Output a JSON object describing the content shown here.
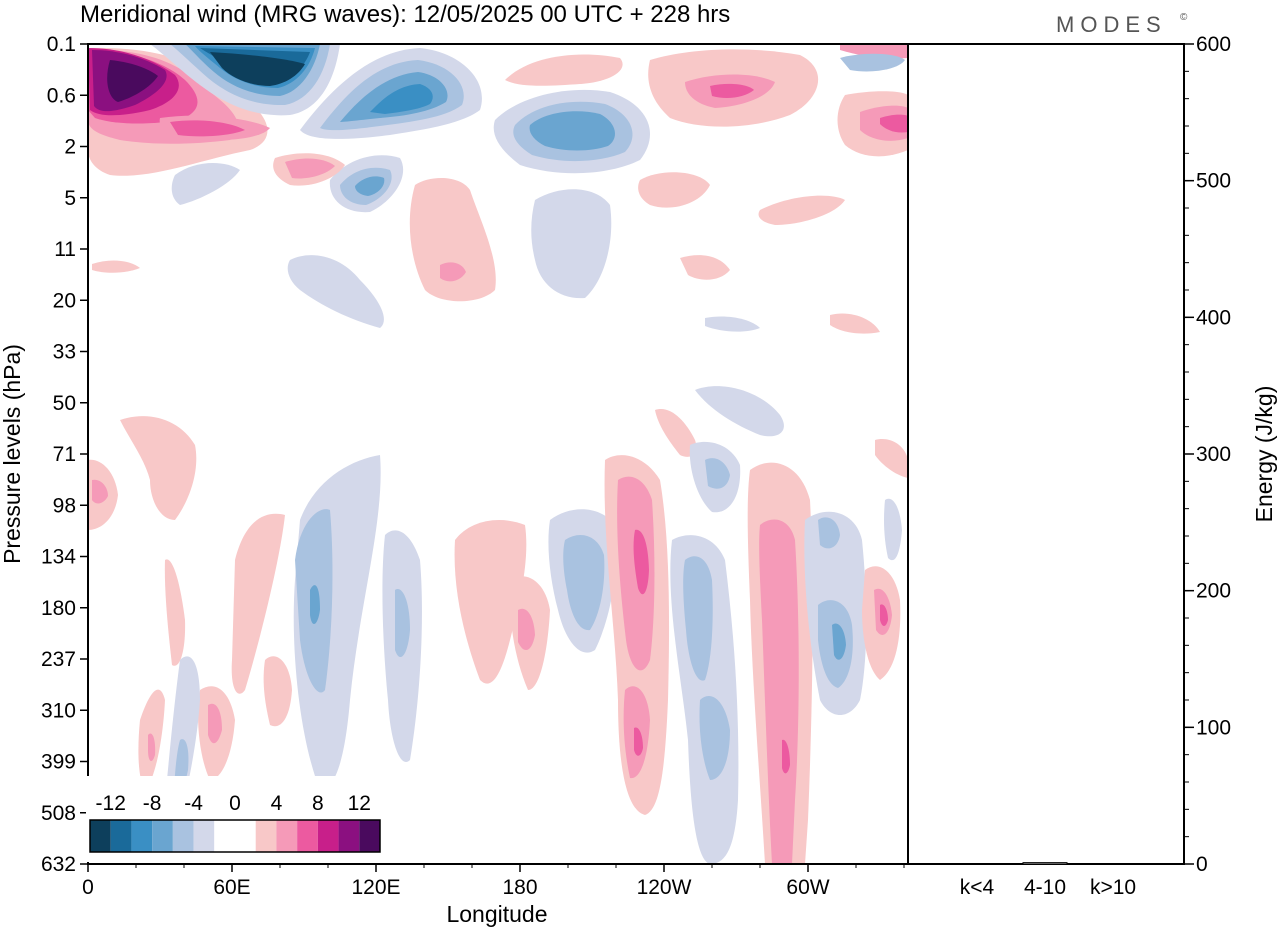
{
  "chart_data": {
    "type": "heatmap",
    "title": "Meridional wind (MRG waves):  12/05/2025  00 UTC  + 228 hrs",
    "brand": "MODES",
    "brand_mark": "©",
    "xlabel": "Longitude",
    "ylabel": "Pressure levels (hPa)",
    "x_ticks": [
      "0",
      "60E",
      "120E",
      "180",
      "120W",
      "60W"
    ],
    "y_ticks": [
      "0.1",
      "0.6",
      "2",
      "5",
      "11",
      "20",
      "33",
      "50",
      "71",
      "98",
      "134",
      "180",
      "237",
      "310",
      "399",
      "508",
      "632"
    ],
    "colorbar": {
      "labels": [
        "-12",
        "-8",
        "-4",
        "0",
        "4",
        "8",
        "12"
      ],
      "colors": [
        "#0d3f5c",
        "#1a6a9a",
        "#3a8fc4",
        "#6aa5d0",
        "#a9c2e0",
        "#d3d8ea",
        "#ffffff",
        "#ffffff",
        "#f8c8c8",
        "#f59ab8",
        "#ec5aa0",
        "#c81f8a",
        "#8b1080",
        "#4a0a5e"
      ]
    },
    "energy_panel": {
      "ylabel": "Energy (J/kg)",
      "ylim": [
        0,
        600
      ],
      "y_ticks": [
        "0",
        "100",
        "200",
        "300",
        "400",
        "500",
        "600"
      ],
      "categories": [
        "k<4",
        "4-10",
        "k>10"
      ],
      "values": [
        0,
        1,
        0
      ]
    }
  }
}
